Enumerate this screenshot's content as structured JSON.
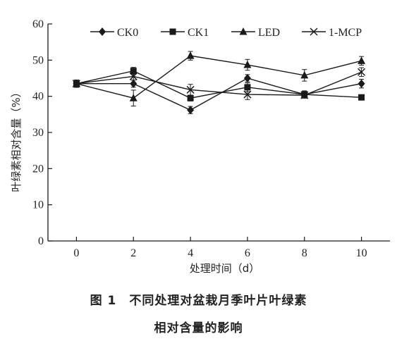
{
  "chart_data": {
    "type": "line",
    "x": [
      0,
      2,
      4,
      6,
      8,
      10
    ],
    "xticks": [
      "0",
      "2",
      "4",
      "6",
      "8",
      "10"
    ],
    "yticks": [
      "0",
      "10",
      "20",
      "30",
      "40",
      "50",
      "60"
    ],
    "xlim": [
      -1,
      11
    ],
    "ylim": [
      0,
      60
    ],
    "xlabel": "处理时间（d）",
    "ylabel": "叶绿素相对含量（%）",
    "grid": false,
    "legend_position": "top",
    "series": [
      {
        "name": "CK0",
        "marker": "diamond",
        "values": [
          43.5,
          43.5,
          36.2,
          45.0,
          40.5,
          43.5
        ],
        "errors": [
          1.0,
          1.0,
          1.0,
          1.0,
          1.0,
          1.2
        ]
      },
      {
        "name": "CK1",
        "marker": "square",
        "values": [
          43.5,
          47.0,
          39.5,
          42.5,
          40.5,
          39.7
        ],
        "errors": [
          1.0,
          1.0,
          0.8,
          1.2,
          0.8,
          0.6
        ]
      },
      {
        "name": "LED",
        "marker": "triangle",
        "values": [
          43.5,
          39.5,
          51.2,
          48.7,
          45.8,
          49.8
        ],
        "errors": [
          1.0,
          2.2,
          1.2,
          1.5,
          1.6,
          1.2
        ]
      },
      {
        "name": "1-MCP",
        "marker": "x",
        "values": [
          43.5,
          45.5,
          41.8,
          40.5,
          40.3,
          46.7
        ],
        "errors": [
          1.0,
          1.0,
          1.5,
          1.4,
          0.8,
          1.2
        ]
      }
    ]
  },
  "caption": {
    "line1": "图 1　不同处理对盆栽月季叶片叶绿素",
    "line2": "相对含量的影响"
  }
}
